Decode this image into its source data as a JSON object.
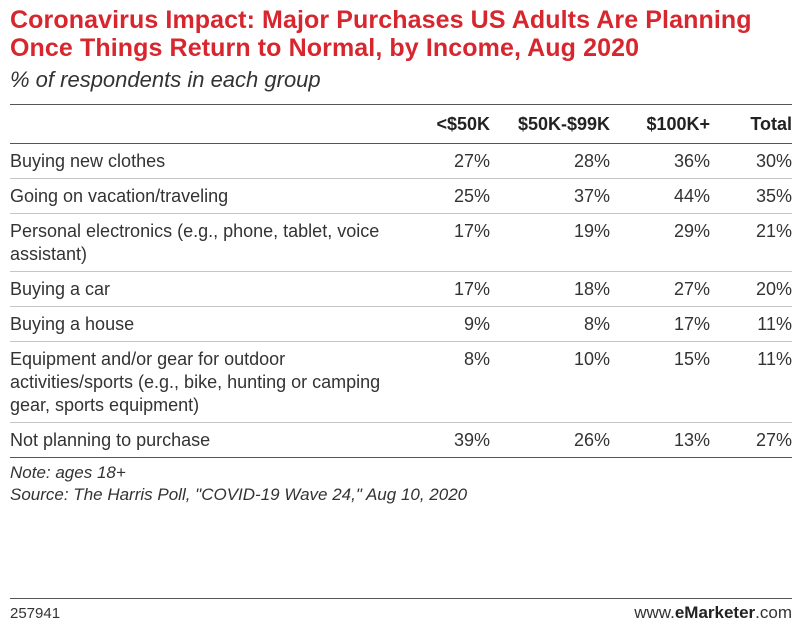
{
  "title": "Coronavirus Impact: Major Purchases US Adults Are Planning Once Things Return to Normal, by Income, Aug 2020",
  "subtitle": "% of respondents in each group",
  "chart_data": {
    "type": "table",
    "columns": [
      "<$50K",
      "$50K-$99K",
      "$100K+",
      "Total"
    ],
    "rows": [
      {
        "label": "Buying new clothes",
        "values": [
          "27%",
          "28%",
          "36%",
          "30%"
        ]
      },
      {
        "label": "Going on vacation/traveling",
        "values": [
          "25%",
          "37%",
          "44%",
          "35%"
        ]
      },
      {
        "label": "Personal electronics (e.g., phone, tablet, voice assistant)",
        "values": [
          "17%",
          "19%",
          "29%",
          "21%"
        ]
      },
      {
        "label": "Buying a car",
        "values": [
          "17%",
          "18%",
          "27%",
          "20%"
        ]
      },
      {
        "label": "Buying a house",
        "values": [
          "9%",
          "8%",
          "17%",
          "11%"
        ]
      },
      {
        "label": "Equipment and/or gear for outdoor activities/sports (e.g., bike, hunting or camping gear, sports equipment)",
        "values": [
          "8%",
          "10%",
          "15%",
          "11%"
        ]
      },
      {
        "label": "Not planning to purchase",
        "values": [
          "39%",
          "26%",
          "13%",
          "27%"
        ]
      }
    ]
  },
  "note": "Note: ages 18+",
  "source": "Source: The Harris Poll, \"COVID-19 Wave 24,\" Aug 10, 2020",
  "footer": {
    "chart_id": "257941",
    "brand_prefix": "www.",
    "brand_bold": "eMarketer",
    "brand_suffix": ".com"
  },
  "colors": {
    "title": "#d7262e",
    "text": "#333333",
    "rule": "#555555"
  }
}
